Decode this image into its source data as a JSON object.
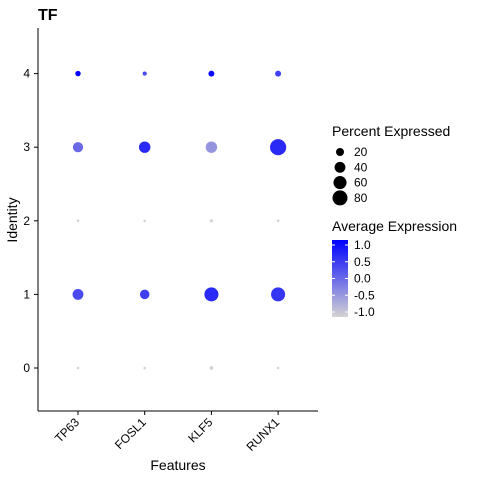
{
  "chart_data": {
    "type": "dot",
    "title": "TF",
    "xlabel": "Features",
    "ylabel": "Identity",
    "features": [
      "TP63",
      "FOSL1",
      "KLF5",
      "RUNX1"
    ],
    "identities": [
      "0",
      "1",
      "2",
      "3",
      "4"
    ],
    "points": [
      {
        "feature": "TP63",
        "identity": "0",
        "pct": 1,
        "avg": -1.0
      },
      {
        "feature": "FOSL1",
        "identity": "0",
        "pct": 1,
        "avg": -1.0
      },
      {
        "feature": "KLF5",
        "identity": "0",
        "pct": 3,
        "avg": -1.0
      },
      {
        "feature": "RUNX1",
        "identity": "0",
        "pct": 1,
        "avg": -1.0
      },
      {
        "feature": "TP63",
        "identity": "1",
        "pct": 40,
        "avg": 0.3
      },
      {
        "feature": "FOSL1",
        "identity": "1",
        "pct": 30,
        "avg": 0.4
      },
      {
        "feature": "KLF5",
        "identity": "1",
        "pct": 70,
        "avg": 0.6
      },
      {
        "feature": "RUNX1",
        "identity": "1",
        "pct": 70,
        "avg": 0.5
      },
      {
        "feature": "TP63",
        "identity": "2",
        "pct": 1,
        "avg": -1.0
      },
      {
        "feature": "FOSL1",
        "identity": "2",
        "pct": 1,
        "avg": -1.0
      },
      {
        "feature": "KLF5",
        "identity": "2",
        "pct": 2,
        "avg": -1.0
      },
      {
        "feature": "RUNX1",
        "identity": "2",
        "pct": 1,
        "avg": -1.0
      },
      {
        "feature": "TP63",
        "identity": "3",
        "pct": 35,
        "avg": 0.0
      },
      {
        "feature": "FOSL1",
        "identity": "3",
        "pct": 45,
        "avg": 0.6
      },
      {
        "feature": "KLF5",
        "identity": "3",
        "pct": 45,
        "avg": -0.4
      },
      {
        "feature": "RUNX1",
        "identity": "3",
        "pct": 95,
        "avg": 0.6
      },
      {
        "feature": "TP63",
        "identity": "4",
        "pct": 8,
        "avg": 1.0
      },
      {
        "feature": "FOSL1",
        "identity": "4",
        "pct": 4,
        "avg": 0.3
      },
      {
        "feature": "KLF5",
        "identity": "4",
        "pct": 10,
        "avg": 0.9
      },
      {
        "feature": "RUNX1",
        "identity": "4",
        "pct": 10,
        "avg": 0.4
      }
    ],
    "size_legend": {
      "title": "Percent Expressed",
      "values": [
        20,
        40,
        60,
        80
      ]
    },
    "color_legend": {
      "title": "Average Expression",
      "ticks": [
        1.0,
        0.5,
        0.0,
        -0.5,
        -1.0
      ],
      "tick_labels": [
        "1.0",
        "0.5",
        "0.0",
        "-0.5",
        "-1.0"
      ],
      "range": [
        -1.0,
        1.0
      ],
      "low_color": "#d3d3d3",
      "high_color": "#0000ff"
    },
    "legend_position": "right",
    "grid": false
  }
}
